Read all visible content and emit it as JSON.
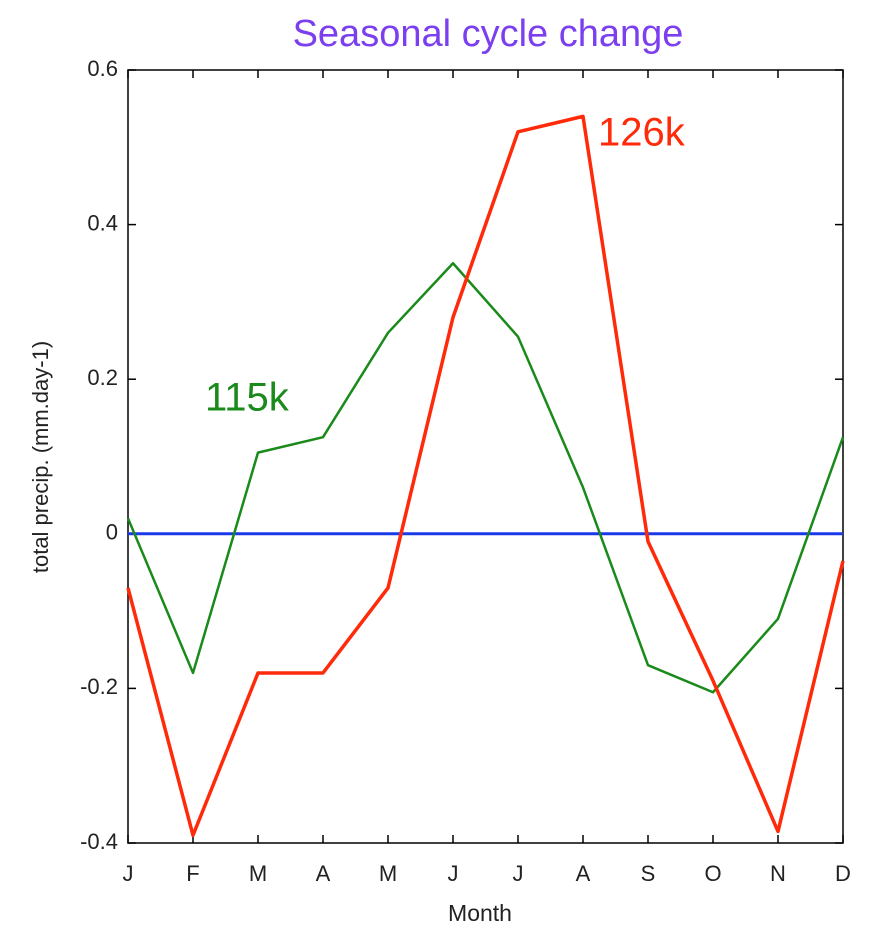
{
  "chart_data": {
    "type": "line",
    "title": "Seasonal cycle change",
    "x_label": "Month",
    "y_label": "total precip. (mm.day-1)",
    "categories": [
      "J",
      "F",
      "M",
      "A",
      "M",
      "J",
      "J",
      "A",
      "S",
      "O",
      "N",
      "D"
    ],
    "series": [
      {
        "name": "115k",
        "color": "#1a8a1a",
        "values": [
          0.02,
          -0.18,
          0.105,
          0.125,
          0.26,
          0.35,
          0.255,
          0.06,
          -0.17,
          -0.205,
          -0.11,
          0.125
        ]
      },
      {
        "name": "126k",
        "color": "#ff2a0a",
        "values": [
          -0.07,
          -0.39,
          -0.18,
          -0.18,
          -0.07,
          0.28,
          0.52,
          0.54,
          -0.01,
          -0.19,
          -0.385,
          -0.035
        ]
      }
    ],
    "ylim": [
      -0.4,
      0.6
    ],
    "yticks": [
      -0.4,
      -0.2,
      0,
      0.2,
      0.4,
      0.6
    ],
    "zero_line_color": "#1a3ae8"
  }
}
